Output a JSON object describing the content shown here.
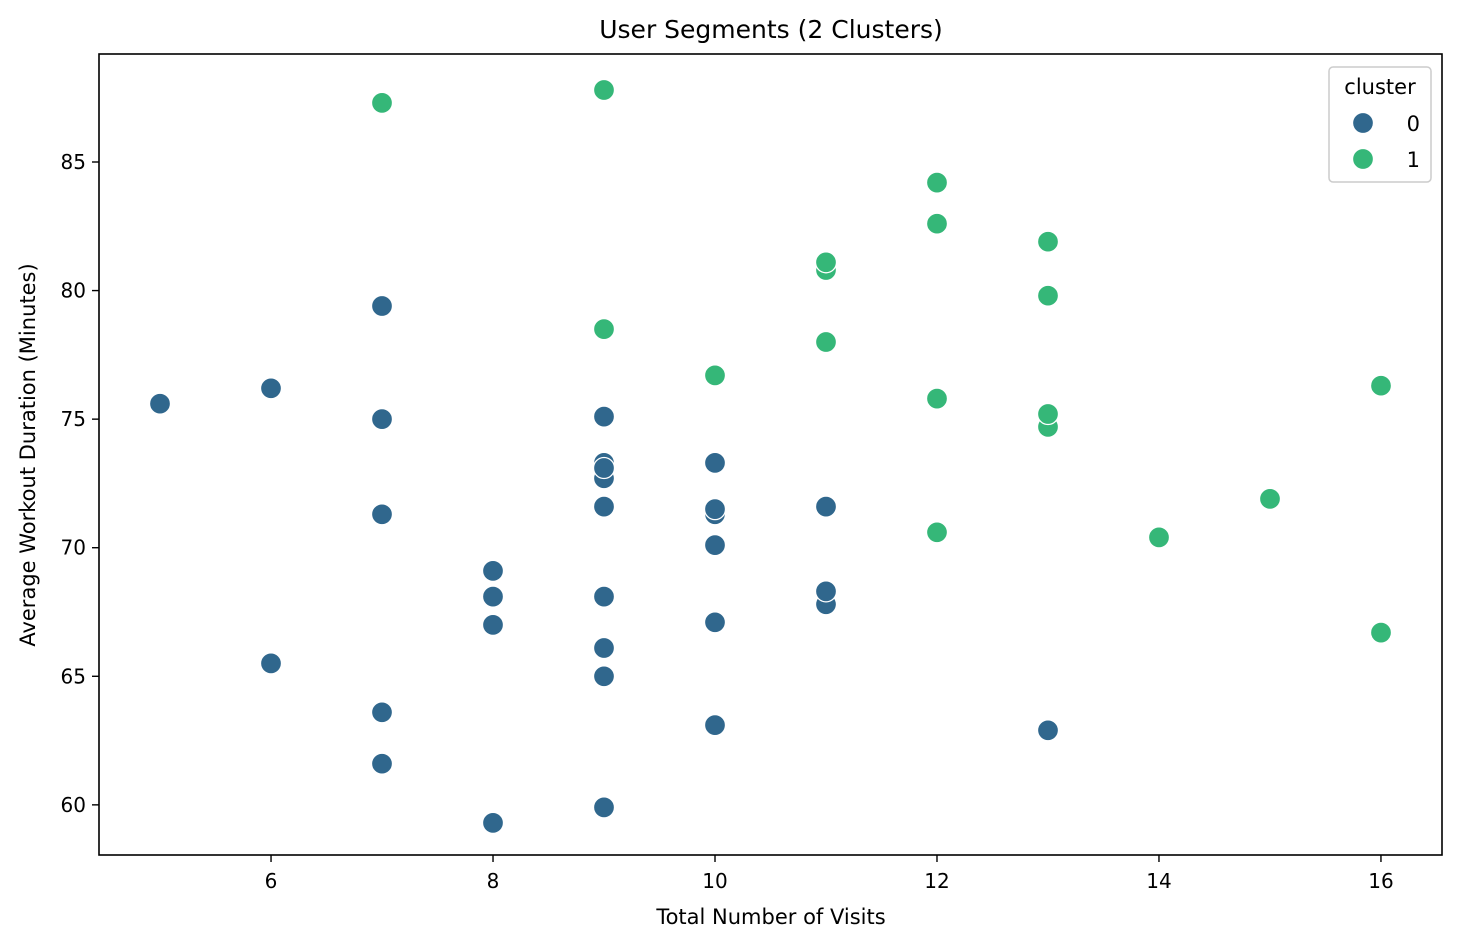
{
  "chart_data": {
    "type": "scatter",
    "title": "User Segments (2 Clusters)",
    "xlabel": "Total Number of Visits",
    "ylabel": "Average Workout Duration (Minutes)",
    "xlim": [
      4.45,
      16.55
    ],
    "ylim": [
      58.05,
      89.2
    ],
    "xticks": [
      6,
      8,
      10,
      12,
      14,
      16
    ],
    "yticks": [
      60,
      65,
      70,
      75,
      80,
      85
    ],
    "grid": false,
    "legend": {
      "title": "cluster",
      "placement": "top-right",
      "entries": [
        {
          "label": "0",
          "color": "#30678d"
        },
        {
          "label": "1",
          "color": "#35b778"
        }
      ]
    },
    "series": [
      {
        "name": "0",
        "color": "#30678d",
        "points": [
          [
            5,
            75.6
          ],
          [
            6,
            76.2
          ],
          [
            6,
            65.5
          ],
          [
            7,
            79.4
          ],
          [
            7,
            75.0
          ],
          [
            7,
            71.3
          ],
          [
            7,
            63.6
          ],
          [
            7,
            61.6
          ],
          [
            8,
            69.1
          ],
          [
            8,
            68.1
          ],
          [
            8,
            67.0
          ],
          [
            8,
            59.3
          ],
          [
            9,
            75.1
          ],
          [
            9,
            73.3
          ],
          [
            9,
            72.7
          ],
          [
            9,
            73.1
          ],
          [
            9,
            71.6
          ],
          [
            9,
            68.1
          ],
          [
            9,
            66.1
          ],
          [
            9,
            65.0
          ],
          [
            9,
            59.9
          ],
          [
            10,
            73.3
          ],
          [
            10,
            71.3
          ],
          [
            10,
            71.5
          ],
          [
            10,
            70.1
          ],
          [
            10,
            67.1
          ],
          [
            10,
            63.1
          ],
          [
            11,
            71.6
          ],
          [
            11,
            67.8
          ],
          [
            11,
            68.3
          ],
          [
            13,
            62.9
          ]
        ]
      },
      {
        "name": "1",
        "color": "#35b778",
        "points": [
          [
            7,
            87.3
          ],
          [
            9,
            87.8
          ],
          [
            9,
            78.5
          ],
          [
            10,
            76.7
          ],
          [
            11,
            80.8
          ],
          [
            11,
            81.1
          ],
          [
            11,
            78.0
          ],
          [
            12,
            84.2
          ],
          [
            12,
            82.6
          ],
          [
            12,
            75.8
          ],
          [
            12,
            70.6
          ],
          [
            13,
            81.9
          ],
          [
            13,
            79.8
          ],
          [
            13,
            74.7
          ],
          [
            13,
            75.2
          ],
          [
            14,
            70.4
          ],
          [
            15,
            71.9
          ],
          [
            16,
            76.3
          ],
          [
            16,
            66.7
          ]
        ]
      }
    ]
  }
}
